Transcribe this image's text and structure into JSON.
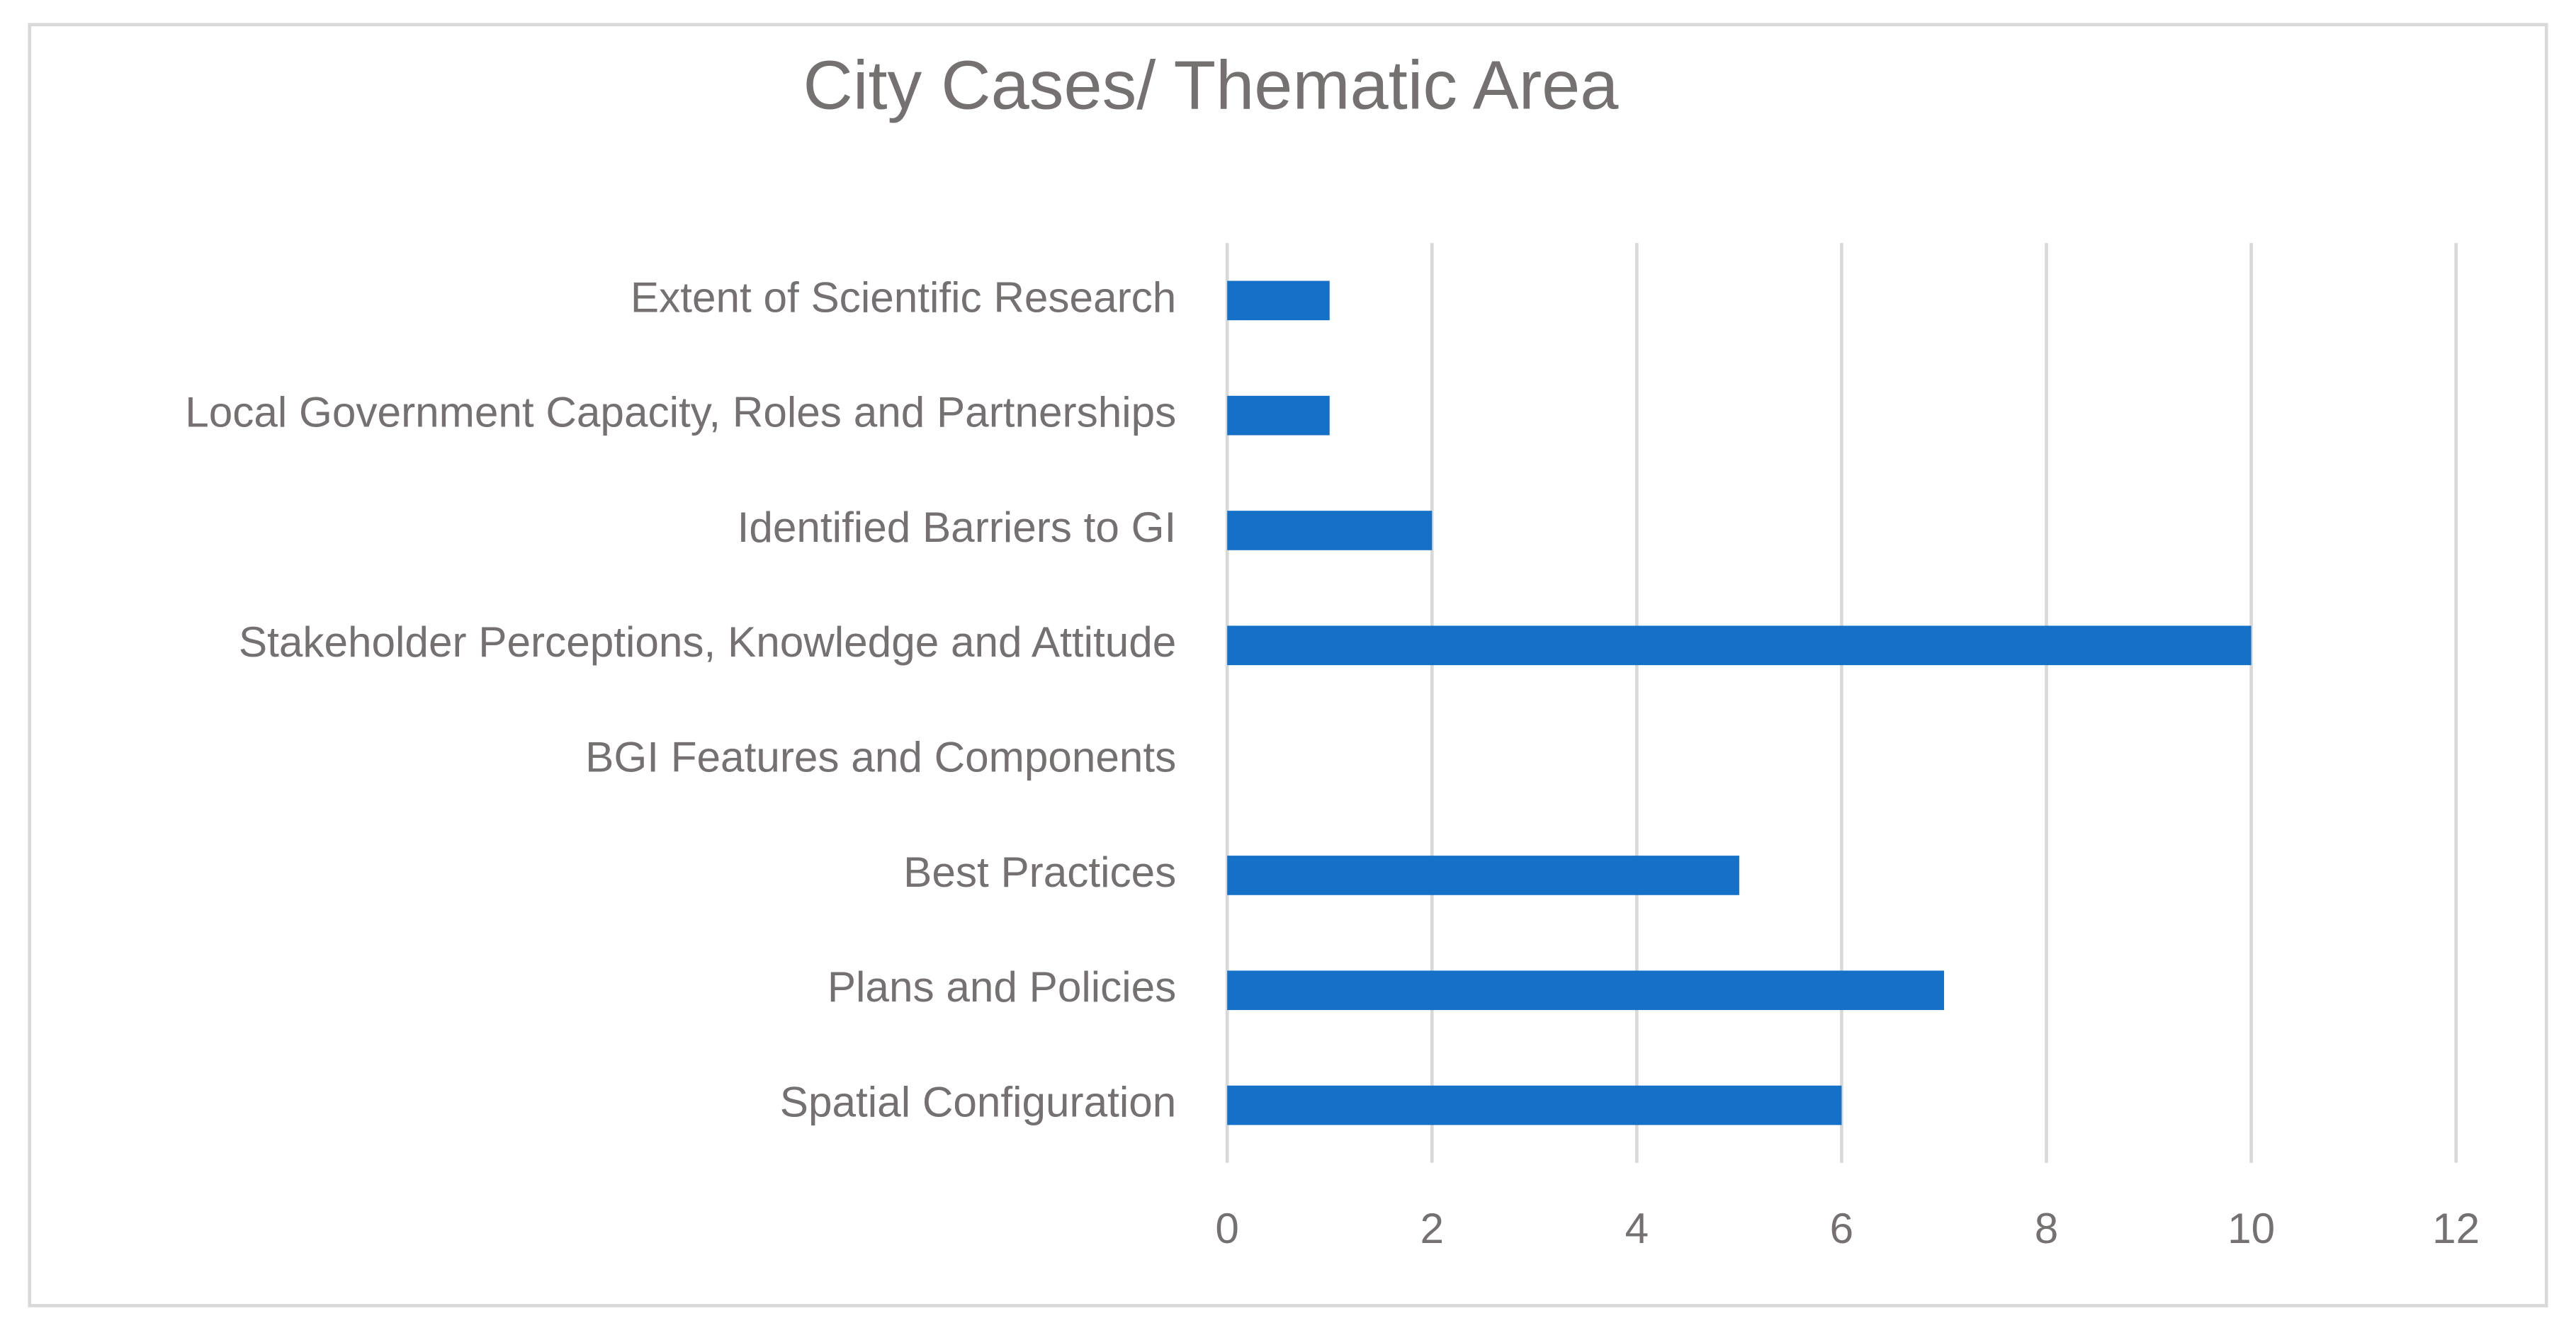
{
  "chart_data": {
    "type": "hbar",
    "title": "City Cases/ Thematic Area",
    "categories": [
      "Extent of Scientific Research",
      "Local Government Capacity, Roles and Partnerships",
      "Identified Barriers to GI",
      "Stakeholder Perceptions, Knowledge and Attitude",
      "BGI Features and Components",
      "Best Practices",
      "Plans and Policies",
      "Spatial Configuration"
    ],
    "values": [
      1,
      1,
      2,
      10,
      0,
      5,
      7,
      6
    ],
    "color": "#1570c8",
    "xlim": [
      0,
      12
    ],
    "xticks": [
      0,
      2,
      4,
      6,
      8,
      10,
      12
    ],
    "grid": true
  }
}
